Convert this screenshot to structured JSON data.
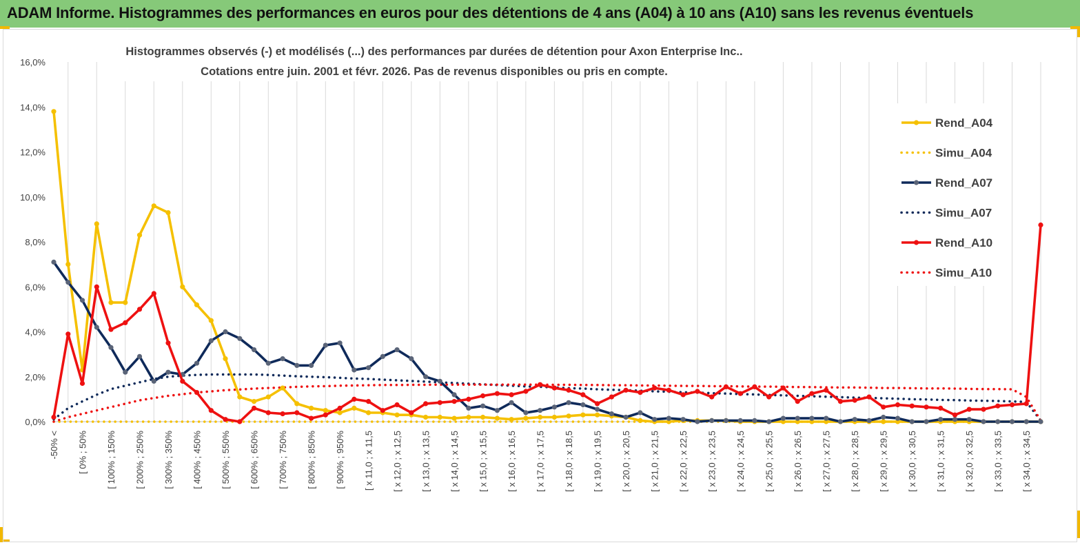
{
  "banner": {
    "title": "ADAM Informe. Histogrammes des performances en euros pour des détentions de 4 ans (A04) à 10 ans (A10) sans les revenus éventuels",
    "color": "#86c979",
    "corner_color": "#f2b800"
  },
  "chart_data": {
    "type": "line",
    "title_line1": "Histogrammes observés (-) et modélisés (...) des performances par durées de détention pour Axon Enterprise Inc..",
    "title_line2": "Cotations entre juin. 2001 et févr. 2026. Pas de revenus disponibles ou pris en compte.",
    "ylim": [
      0,
      16
    ],
    "y_ticks": [
      "0,0%",
      "2,0%",
      "4,0%",
      "6,0%",
      "8,0%",
      "10,0%",
      "12,0%",
      "14,0%",
      "16,0%"
    ],
    "grid": "vertical",
    "legend_position": "right",
    "x_tick_labels": [
      "-50% <",
      "[ 0% ; 50%",
      "[ 100% ; 150%",
      "[ 200% ; 250%",
      "[ 300% ; 350%",
      "[ 400% ; 450%",
      "[ 500% ; 550%",
      "[ 600% ; 650%",
      "[ 700% ; 750%",
      "[ 800% ; 850%",
      "[ 900% ; 950%",
      "[ x 11,0 ; x 11,5",
      "[ x 12,0 ; x 12,5",
      "[ x 13,0 ; x 13,5",
      "[ x 14,0 ; x 14,5",
      "[ x 15,0 ; x 15,5",
      "[ x 16,0 ; x 16,5",
      "[ x 17,0 ; x 17,5",
      "[ x 18,0 ; x 18,5",
      "[ x 19,0 ; x 19,5",
      "[ x 20,0 ; x 20,5",
      "[ x 21,0 ; x 21,5",
      "[ x 22,0 ; x 22,5",
      "[ x 23,0 ; x 23,5",
      "[ x 24,0 ; x 24,5",
      "[ x 25,0 ; x 25,5",
      "[ x 26,0 ; x 26,5",
      "[ x 27,0 ; x 27,5",
      "[ x 28,0 ; x 28,5",
      "[ x 29,0 ; x 29,5",
      "[ x 30,0 ; x 30,5",
      "[ x 31,0 ; x 31,5",
      "[ x 32,0 ; x 32,5",
      "[ x 33,0 ; x 33,5",
      "[ x 34,0 ; x 34,5"
    ],
    "series": [
      {
        "name": "Rend_A04",
        "style": "solid",
        "color": "#f5c000",
        "values": [
          13.8,
          7.0,
          2.3,
          8.8,
          5.3,
          5.3,
          8.3,
          9.6,
          9.3,
          6.0,
          5.2,
          4.5,
          2.8,
          1.1,
          0.9,
          1.1,
          1.5,
          0.8,
          0.6,
          0.5,
          0.4,
          0.6,
          0.4,
          0.4,
          0.3,
          0.3,
          0.2,
          0.2,
          0.15,
          0.2,
          0.2,
          0.15,
          0.1,
          0.15,
          0.2,
          0.2,
          0.25,
          0.3,
          0.3,
          0.25,
          0.2,
          0.05,
          0.0,
          0.0,
          0.05,
          0.05,
          0.05,
          0.05,
          0.0,
          0.0,
          0.0,
          0.0,
          0.0,
          0.0,
          0.0,
          0.0,
          0.0,
          0.0,
          0.0,
          0.0,
          0.0,
          0.0,
          0.0,
          0.0,
          0.0,
          0.0,
          0.0,
          0.0,
          0.0,
          0.0
        ]
      },
      {
        "name": "Simu_A04",
        "style": "dotted",
        "color": "#f5c000",
        "values": [
          0.0,
          0.0,
          0.0,
          0.0,
          0.0,
          0.0,
          0.0,
          0.0,
          0.0,
          0.0,
          0.0,
          0.0,
          0.0,
          0.0,
          0.0,
          0.0,
          0.0,
          0.0,
          0.0,
          0.0,
          0.0,
          0.0,
          0.0,
          0.0,
          0.0,
          0.0,
          0.0,
          0.0,
          0.0,
          0.0,
          0.0,
          0.0,
          0.0,
          0.0,
          0.0,
          0.0,
          0.0,
          0.0,
          0.0,
          0.0,
          0.0,
          0.0,
          0.0,
          0.0,
          0.0,
          0.0,
          0.0,
          0.0,
          0.0,
          0.0,
          0.0,
          0.0,
          0.0,
          0.0,
          0.0,
          0.0,
          0.0,
          0.0,
          0.0,
          0.0,
          0.0,
          0.0,
          0.0,
          0.0,
          0.0,
          0.0,
          0.0,
          0.0,
          0.0,
          0.0
        ]
      },
      {
        "name": "Rend_A07",
        "style": "solid",
        "color": "#0f2a5a",
        "values": [
          7.1,
          6.2,
          5.4,
          4.2,
          3.3,
          2.2,
          2.9,
          1.8,
          2.2,
          2.1,
          2.6,
          3.6,
          4.0,
          3.7,
          3.2,
          2.6,
          2.8,
          2.5,
          2.5,
          3.4,
          3.5,
          2.3,
          2.4,
          2.9,
          3.2,
          2.8,
          2.0,
          1.8,
          1.2,
          0.6,
          0.7,
          0.5,
          0.85,
          0.4,
          0.5,
          0.65,
          0.85,
          0.75,
          0.55,
          0.35,
          0.2,
          0.4,
          0.1,
          0.15,
          0.1,
          0.0,
          0.05,
          0.05,
          0.05,
          0.05,
          0.0,
          0.15,
          0.15,
          0.15,
          0.15,
          0.0,
          0.1,
          0.05,
          0.2,
          0.15,
          0.0,
          0.0,
          0.1,
          0.1,
          0.1,
          0.0,
          0.0,
          0.0,
          0.0,
          0.0
        ]
      },
      {
        "name": "Simu_A07",
        "style": "dotted",
        "color": "#0f2a5a",
        "values": [
          0.1,
          0.6,
          0.9,
          1.2,
          1.45,
          1.6,
          1.75,
          1.9,
          2.0,
          2.05,
          2.08,
          2.1,
          2.1,
          2.1,
          2.1,
          2.08,
          2.05,
          2.02,
          2.0,
          1.98,
          1.95,
          1.92,
          1.9,
          1.87,
          1.84,
          1.81,
          1.78,
          1.75,
          1.72,
          1.69,
          1.66,
          1.63,
          1.6,
          1.57,
          1.55,
          1.52,
          1.49,
          1.47,
          1.44,
          1.42,
          1.4,
          1.38,
          1.35,
          1.33,
          1.31,
          1.29,
          1.27,
          1.25,
          1.23,
          1.21,
          1.19,
          1.17,
          1.15,
          1.13,
          1.11,
          1.09,
          1.07,
          1.06,
          1.04,
          1.02,
          1.0,
          0.99,
          0.97,
          0.96,
          0.94,
          0.93,
          0.92,
          0.9,
          0.88,
          0.05
        ]
      },
      {
        "name": "Rend_A10",
        "style": "solid",
        "color": "#ee1111",
        "values": [
          0.2,
          3.9,
          1.7,
          6.0,
          4.1,
          4.4,
          5.0,
          5.7,
          3.5,
          1.8,
          1.3,
          0.5,
          0.1,
          0.0,
          0.6,
          0.4,
          0.35,
          0.4,
          0.15,
          0.3,
          0.6,
          1.0,
          0.9,
          0.5,
          0.75,
          0.4,
          0.8,
          0.85,
          0.9,
          1.0,
          1.15,
          1.25,
          1.2,
          1.35,
          1.65,
          1.5,
          1.4,
          1.2,
          0.8,
          1.1,
          1.4,
          1.3,
          1.5,
          1.4,
          1.2,
          1.35,
          1.1,
          1.55,
          1.25,
          1.55,
          1.1,
          1.5,
          0.9,
          1.25,
          1.4,
          0.9,
          0.95,
          1.1,
          0.65,
          0.75,
          0.7,
          0.65,
          0.6,
          0.3,
          0.55,
          0.55,
          0.7,
          0.75,
          0.8,
          8.75
        ]
      },
      {
        "name": "Simu_A10",
        "style": "dotted",
        "color": "#ee1111",
        "values": [
          0.0,
          0.2,
          0.35,
          0.5,
          0.65,
          0.8,
          0.95,
          1.05,
          1.15,
          1.22,
          1.3,
          1.35,
          1.4,
          1.43,
          1.47,
          1.5,
          1.52,
          1.55,
          1.57,
          1.58,
          1.6,
          1.61,
          1.62,
          1.63,
          1.63,
          1.64,
          1.64,
          1.65,
          1.65,
          1.65,
          1.65,
          1.65,
          1.65,
          1.65,
          1.65,
          1.64,
          1.64,
          1.63,
          1.63,
          1.62,
          1.62,
          1.61,
          1.61,
          1.6,
          1.59,
          1.59,
          1.58,
          1.58,
          1.57,
          1.56,
          1.56,
          1.55,
          1.54,
          1.54,
          1.53,
          1.52,
          1.52,
          1.51,
          1.5,
          1.5,
          1.49,
          1.48,
          1.48,
          1.47,
          1.46,
          1.45,
          1.45,
          1.44,
          1.1,
          0.05
        ]
      }
    ]
  }
}
